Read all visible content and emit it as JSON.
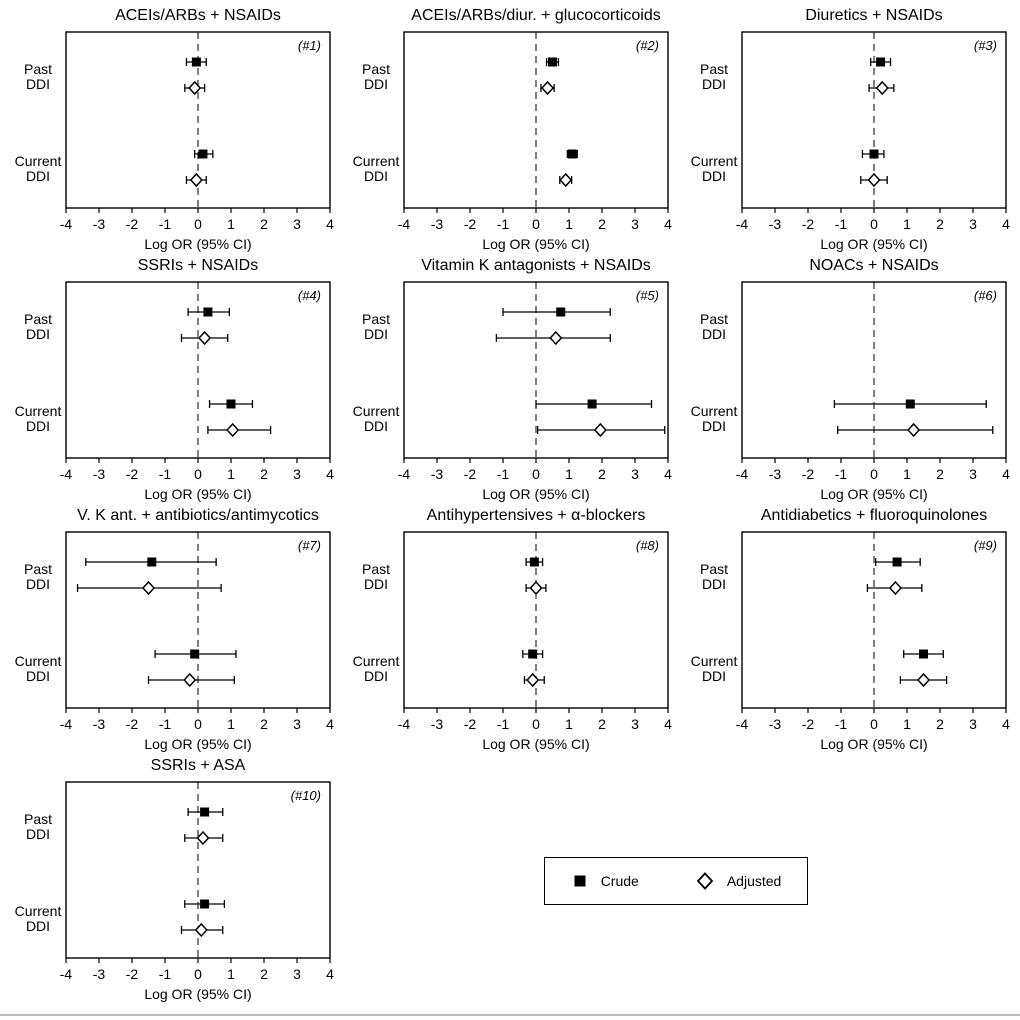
{
  "figure": {
    "xlabel": "Log OR (95% CI)",
    "xlim": [
      -4,
      4
    ],
    "x_ticks": [
      -4,
      -3,
      -2,
      -1,
      0,
      1,
      2,
      3,
      4
    ],
    "row_labels": [
      "Past DDI",
      "Current DDI"
    ],
    "colors": {
      "marker": "#000000",
      "background": "#ffffff"
    }
  },
  "legend": {
    "items": [
      {
        "label": "Crude",
        "marker": "filled-square"
      },
      {
        "label": "Adjusted",
        "marker": "open-diamond"
      }
    ]
  },
  "chart_data": [
    {
      "type": "scatter",
      "subtype": "forest-plot",
      "id": "(#1)",
      "title": "ACEIs/ARBs + NSAIDs",
      "xlabel": "Log OR (95% CI)",
      "xlim": [
        -4,
        4
      ],
      "rows": [
        {
          "label": "Past DDI",
          "crude": {
            "est": -0.05,
            "lo": -0.35,
            "hi": 0.25
          },
          "adjusted": {
            "est": -0.1,
            "lo": -0.4,
            "hi": 0.2
          }
        },
        {
          "label": "Current DDI",
          "crude": {
            "est": 0.15,
            "lo": -0.1,
            "hi": 0.45
          },
          "adjusted": {
            "est": -0.05,
            "lo": -0.35,
            "hi": 0.25
          }
        }
      ]
    },
    {
      "type": "scatter",
      "subtype": "forest-plot",
      "id": "(#2)",
      "title": "ACEIs/ARBs/diur. + glucocorticoids",
      "xlabel": "Log OR (95% CI)",
      "xlim": [
        -4,
        4
      ],
      "rows": [
        {
          "label": "Past DDI",
          "crude": {
            "est": 0.5,
            "lo": 0.32,
            "hi": 0.68
          },
          "adjusted": {
            "est": 0.35,
            "lo": 0.15,
            "hi": 0.55
          }
        },
        {
          "label": "Current DDI",
          "crude": {
            "est": 1.1,
            "lo": 0.95,
            "hi": 1.25
          },
          "adjusted": {
            "est": 0.9,
            "lo": 0.72,
            "hi": 1.08
          }
        }
      ]
    },
    {
      "type": "scatter",
      "subtype": "forest-plot",
      "id": "(#3)",
      "title": "Diuretics + NSAIDs",
      "xlabel": "Log OR (95% CI)",
      "xlim": [
        -4,
        4
      ],
      "rows": [
        {
          "label": "Past DDI",
          "crude": {
            "est": 0.2,
            "lo": -0.1,
            "hi": 0.5
          },
          "adjusted": {
            "est": 0.25,
            "lo": -0.15,
            "hi": 0.6
          }
        },
        {
          "label": "Current DDI",
          "crude": {
            "est": 0.0,
            "lo": -0.35,
            "hi": 0.3
          },
          "adjusted": {
            "est": 0.0,
            "lo": -0.4,
            "hi": 0.4
          }
        }
      ]
    },
    {
      "type": "scatter",
      "subtype": "forest-plot",
      "id": "(#4)",
      "title": "SSRIs + NSAIDs",
      "xlabel": "Log OR (95% CI)",
      "xlim": [
        -4,
        4
      ],
      "rows": [
        {
          "label": "Past DDI",
          "crude": {
            "est": 0.3,
            "lo": -0.3,
            "hi": 0.95
          },
          "adjusted": {
            "est": 0.2,
            "lo": -0.5,
            "hi": 0.9
          }
        },
        {
          "label": "Current DDI",
          "crude": {
            "est": 1.0,
            "lo": 0.35,
            "hi": 1.65
          },
          "adjusted": {
            "est": 1.05,
            "lo": 0.3,
            "hi": 2.2
          }
        }
      ]
    },
    {
      "type": "scatter",
      "subtype": "forest-plot",
      "id": "(#5)",
      "title": "Vitamin K antagonists + NSAIDs",
      "xlabel": "Log OR (95% CI)",
      "xlim": [
        -4,
        4
      ],
      "rows": [
        {
          "label": "Past DDI",
          "crude": {
            "est": 0.75,
            "lo": -1.0,
            "hi": 2.25
          },
          "adjusted": {
            "est": 0.6,
            "lo": -1.2,
            "hi": 2.25
          }
        },
        {
          "label": "Current DDI",
          "crude": {
            "est": 1.7,
            "lo": 0.0,
            "hi": 3.5
          },
          "adjusted": {
            "est": 1.95,
            "lo": 0.05,
            "hi": 3.9
          }
        }
      ]
    },
    {
      "type": "scatter",
      "subtype": "forest-plot",
      "id": "(#6)",
      "title": "NOACs + NSAIDs",
      "xlabel": "Log OR (95% CI)",
      "xlim": [
        -4,
        4
      ],
      "rows": [
        {
          "label": "Past DDI",
          "crude": null,
          "adjusted": null
        },
        {
          "label": "Current DDI",
          "crude": {
            "est": 1.1,
            "lo": -1.2,
            "hi": 3.4
          },
          "adjusted": {
            "est": 1.2,
            "lo": -1.1,
            "hi": 3.6
          }
        }
      ]
    },
    {
      "type": "scatter",
      "subtype": "forest-plot",
      "id": "(#7)",
      "title": "V. K ant. + antibiotics/antimycotics",
      "xlabel": "Log OR (95% CI)",
      "xlim": [
        -4,
        4
      ],
      "rows": [
        {
          "label": "Past DDI",
          "crude": {
            "est": -1.4,
            "lo": -3.4,
            "hi": 0.55
          },
          "adjusted": {
            "est": -1.5,
            "lo": -3.65,
            "hi": 0.7
          }
        },
        {
          "label": "Current DDI",
          "crude": {
            "est": -0.1,
            "lo": -1.3,
            "hi": 1.15
          },
          "adjusted": {
            "est": -0.25,
            "lo": -1.5,
            "hi": 1.1
          }
        }
      ]
    },
    {
      "type": "scatter",
      "subtype": "forest-plot",
      "id": "(#8)",
      "title": "Antihypertensives + α-blockers",
      "xlabel": "Log OR (95% CI)",
      "xlim": [
        -4,
        4
      ],
      "rows": [
        {
          "label": "Past DDI",
          "crude": {
            "est": -0.05,
            "lo": -0.3,
            "hi": 0.2
          },
          "adjusted": {
            "est": 0.0,
            "lo": -0.3,
            "hi": 0.3
          }
        },
        {
          "label": "Current DDI",
          "crude": {
            "est": -0.1,
            "lo": -0.4,
            "hi": 0.2
          },
          "adjusted": {
            "est": -0.1,
            "lo": -0.35,
            "hi": 0.25
          }
        }
      ]
    },
    {
      "type": "scatter",
      "subtype": "forest-plot",
      "id": "(#9)",
      "title": "Antidiabetics + fluoroquinolones",
      "xlabel": "Log OR (95% CI)",
      "xlim": [
        -4,
        4
      ],
      "rows": [
        {
          "label": "Past DDI",
          "crude": {
            "est": 0.7,
            "lo": 0.05,
            "hi": 1.4
          },
          "adjusted": {
            "est": 0.65,
            "lo": -0.2,
            "hi": 1.45
          }
        },
        {
          "label": "Current DDI",
          "crude": {
            "est": 1.5,
            "lo": 0.9,
            "hi": 2.1
          },
          "adjusted": {
            "est": 1.5,
            "lo": 0.8,
            "hi": 2.2
          }
        }
      ]
    },
    {
      "type": "scatter",
      "subtype": "forest-plot",
      "id": "(#10)",
      "title": "SSRIs + ASA",
      "xlabel": "Log OR (95% CI)",
      "xlim": [
        -4,
        4
      ],
      "rows": [
        {
          "label": "Past DDI",
          "crude": {
            "est": 0.2,
            "lo": -0.3,
            "hi": 0.75
          },
          "adjusted": {
            "est": 0.15,
            "lo": -0.4,
            "hi": 0.75
          }
        },
        {
          "label": "Current DDI",
          "crude": {
            "est": 0.2,
            "lo": -0.4,
            "hi": 0.8
          },
          "adjusted": {
            "est": 0.1,
            "lo": -0.5,
            "hi": 0.75
          }
        }
      ]
    }
  ]
}
